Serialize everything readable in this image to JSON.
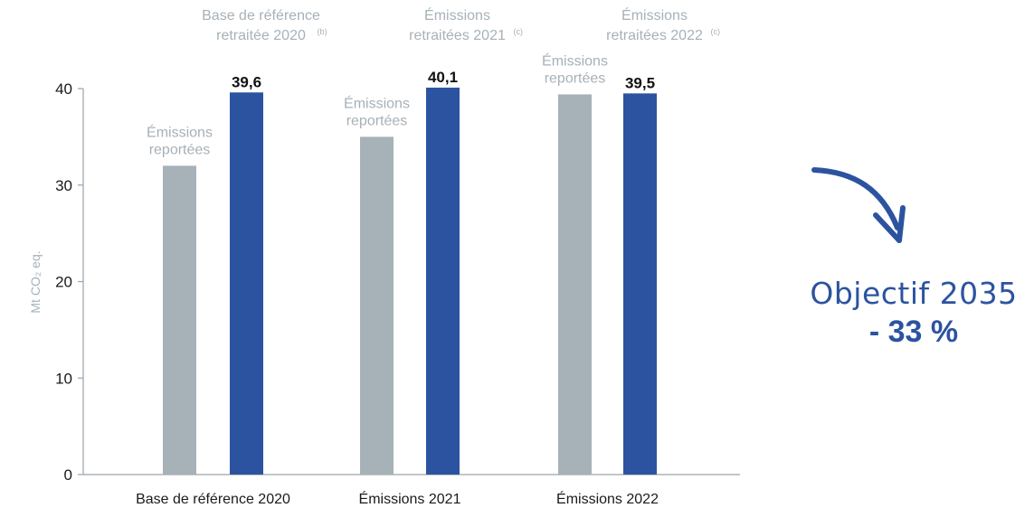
{
  "chart_data": {
    "type": "bar",
    "ylabel": "Mt CO₂ eq.",
    "ylim": [
      0,
      40
    ],
    "yticks": [
      "0",
      "10",
      "20",
      "30",
      "40"
    ],
    "categories": [
      "Base de référence 2020",
      "Émissions 2021",
      "Émissions 2022"
    ],
    "series": [
      {
        "values": [
          32,
          35,
          39.4
        ],
        "labels": [
          "Émissions reportées",
          "Émissions reportées",
          "Émissions reportées"
        ],
        "label_lines": [
          [
            "Émissions",
            "reportées"
          ],
          [
            "Émissions",
            "reportées"
          ],
          [
            "Émissions",
            "reportées"
          ]
        ]
      },
      {
        "values": [
          39.6,
          40.1,
          39.5
        ],
        "value_labels": [
          "39,6",
          "40,1",
          "39,5"
        ],
        "top_label_lines": [
          [
            "Base de référence",
            "retraitée 2020"
          ],
          [
            "Émissions",
            "retraitées 2021"
          ],
          [
            "Émissions",
            "retraitées 2022"
          ]
        ],
        "top_label_notes": [
          "(b)",
          "(c)",
          "(c)"
        ]
      }
    ],
    "colors": {
      "reported": "#a7b1b8",
      "restated": "#2c53a0",
      "axis": "#9aa3aa",
      "muted_text": "#a7b1b8"
    }
  },
  "objectif": {
    "title": "Objectif 2035",
    "value": "- 33 %",
    "arrow_icon": "curved-arrow-down-icon",
    "color": "#2c53a0"
  }
}
